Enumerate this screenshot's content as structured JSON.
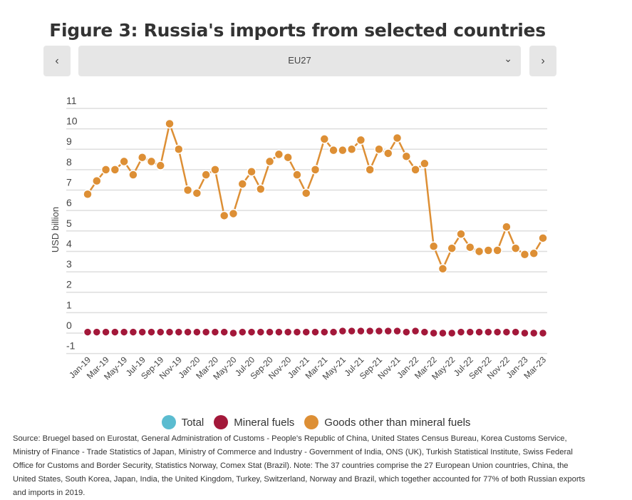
{
  "title": "Figure 3: Russia's imports from selected countries",
  "selector": {
    "value": "EU27",
    "prev_icon": "chevron-left-icon",
    "next_icon": "chevron-right-icon",
    "dropdown_icon": "chevron-down-icon"
  },
  "legend": [
    {
      "label": "Total",
      "color": "#5bbcd0"
    },
    {
      "label": "Mineral fuels",
      "color": "#a3183a"
    },
    {
      "label": "Goods other than mineral fuels",
      "color": "#dd8f35"
    }
  ],
  "source": "Source: Bruegel based on Eurostat, General Administration of Customs - People's Republic of China, United States Census Bureau, Korea Customs Service, Ministry of Finance - Trade Statistics of Japan, Ministry of Commerce and Industry - Government of India, ONS (UK), Turkish Statistical Institute, Swiss Federal Office for Customs and Border Security, Statistics Norway, Comex Stat (Brazil). Note: The 37 countries comprise the 27 European Union countries, China, the United States, South Korea, Japan, India, the United Kingdom, Turkey, Switzerland, Norway and Brazil, which together accounted for 77% of both Russian exports and imports in 2019.",
  "chart_data": {
    "type": "line",
    "title": "Figure 3: Russia's imports from selected countries",
    "xlabel": "",
    "ylabel": "USD billion",
    "ylim": [
      -1,
      11
    ],
    "yticks": [
      11,
      10,
      9,
      8,
      7,
      6,
      5,
      4,
      3,
      2,
      1,
      0,
      -1
    ],
    "grid": true,
    "legend_position": "bottom",
    "x": [
      "Jan-19",
      "Feb-19",
      "Mar-19",
      "Apr-19",
      "May-19",
      "Jun-19",
      "Jul-19",
      "Aug-19",
      "Sep-19",
      "Oct-19",
      "Nov-19",
      "Dec-19",
      "Jan-20",
      "Feb-20",
      "Mar-20",
      "Apr-20",
      "May-20",
      "Jun-20",
      "Jul-20",
      "Aug-20",
      "Sep-20",
      "Oct-20",
      "Nov-20",
      "Dec-20",
      "Jan-21",
      "Feb-21",
      "Mar-21",
      "Apr-21",
      "May-21",
      "Jun-21",
      "Jul-21",
      "Aug-21",
      "Sep-21",
      "Oct-21",
      "Nov-21",
      "Dec-21",
      "Jan-22",
      "Feb-22",
      "Mar-22",
      "Apr-22",
      "May-22",
      "Jun-22",
      "Jul-22",
      "Aug-22",
      "Sep-22",
      "Oct-22",
      "Nov-22",
      "Dec-22",
      "Jan-23",
      "Feb-23",
      "Mar-23"
    ],
    "xticklabels": [
      "Jan-19",
      "Mar-19",
      "May-19",
      "Jul-19",
      "Sep-19",
      "Nov-19",
      "Jan-20",
      "Mar-20",
      "May-20",
      "Jul-20",
      "Sep-20",
      "Nov-20",
      "Jan-21",
      "Mar-21",
      "May-21",
      "Jul-21",
      "Sep-21",
      "Nov-21",
      "Jan-22",
      "Mar-22",
      "May-22",
      "Jul-22",
      "Sep-22",
      "Nov-22",
      "Jan-23",
      "Mar-23"
    ],
    "series": [
      {
        "name": "Mineral fuels",
        "color": "#a3183a",
        "values": [
          0.05,
          0.05,
          0.05,
          0.05,
          0.05,
          0.05,
          0.05,
          0.05,
          0.05,
          0.05,
          0.05,
          0.05,
          0.05,
          0.05,
          0.05,
          0.05,
          0.0,
          0.05,
          0.05,
          0.05,
          0.05,
          0.05,
          0.05,
          0.05,
          0.05,
          0.05,
          0.05,
          0.05,
          0.1,
          0.1,
          0.1,
          0.1,
          0.1,
          0.1,
          0.1,
          0.05,
          0.1,
          0.05,
          0.0,
          0.0,
          0.0,
          0.05,
          0.05,
          0.05,
          0.05,
          0.05,
          0.05,
          0.05,
          0.0,
          0.0,
          0.0
        ]
      },
      {
        "name": "Goods other than mineral fuels",
        "color": "#dd8f35",
        "values": [
          6.8,
          7.45,
          8.0,
          8.0,
          8.4,
          7.75,
          8.6,
          8.4,
          8.2,
          10.25,
          9.0,
          7.0,
          6.85,
          7.75,
          8.0,
          5.75,
          5.85,
          7.3,
          7.9,
          7.05,
          8.4,
          8.75,
          8.6,
          7.75,
          6.85,
          8.0,
          9.5,
          8.95,
          8.95,
          9.0,
          9.45,
          8.0,
          9.0,
          8.8,
          9.55,
          8.65,
          8.0,
          8.3,
          4.25,
          3.15,
          4.15,
          4.85,
          4.2,
          4.0,
          4.05,
          4.05,
          5.2,
          4.15,
          3.85,
          3.9,
          4.65
        ]
      }
    ]
  }
}
